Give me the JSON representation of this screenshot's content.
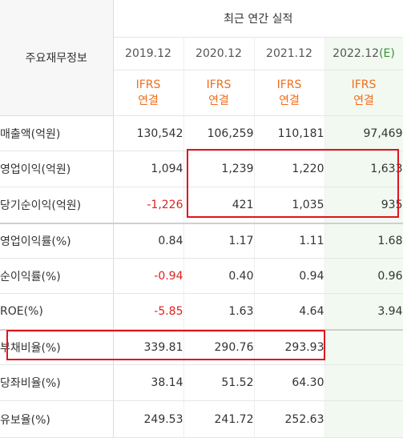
{
  "header": {
    "corner_label": "주요재무정보",
    "group_title": "최근 연간 실적",
    "periods": [
      {
        "year": "2019.12",
        "mark": "",
        "ifrs": "IFRS",
        "basis": "연결"
      },
      {
        "year": "2020.12",
        "mark": "",
        "ifrs": "IFRS",
        "basis": "연결"
      },
      {
        "year": "2021.12",
        "mark": "",
        "ifrs": "IFRS",
        "basis": "연결"
      },
      {
        "year": "2022.12",
        "mark": "(E)",
        "ifrs": "IFRS",
        "basis": "연결"
      }
    ]
  },
  "rows": [
    {
      "label": "매출액(억원)",
      "values": [
        "130,542",
        "106,259",
        "110,181",
        "97,469"
      ]
    },
    {
      "label": "영업이익(억원)",
      "values": [
        "1,094",
        "1,239",
        "1,220",
        "1,633"
      ]
    },
    {
      "label": "당기순이익(억원)",
      "values": [
        "-1,226",
        "421",
        "1,035",
        "935"
      ]
    },
    {
      "label": "영업이익률(%)",
      "values": [
        "0.84",
        "1.17",
        "1.11",
        "1.68"
      ]
    },
    {
      "label": "순이익률(%)",
      "values": [
        "-0.94",
        "0.40",
        "0.94",
        "0.96"
      ]
    },
    {
      "label": "ROE(%)",
      "values": [
        "-5.85",
        "1.63",
        "4.64",
        "3.94"
      ]
    },
    {
      "label": "부채비율(%)",
      "values": [
        "339.81",
        "290.76",
        "293.93",
        ""
      ]
    },
    {
      "label": "당좌비율(%)",
      "values": [
        "38.14",
        "51.52",
        "64.30",
        ""
      ]
    },
    {
      "label": "유보율(%)",
      "values": [
        "249.53",
        "241.72",
        "252.63",
        ""
      ]
    }
  ],
  "colors": {
    "ifrs_text": "#f26c1b",
    "negative_value": "#e02020",
    "estimate_column_bg": "#f2f9f1",
    "highlight_box": "#e0141e"
  }
}
